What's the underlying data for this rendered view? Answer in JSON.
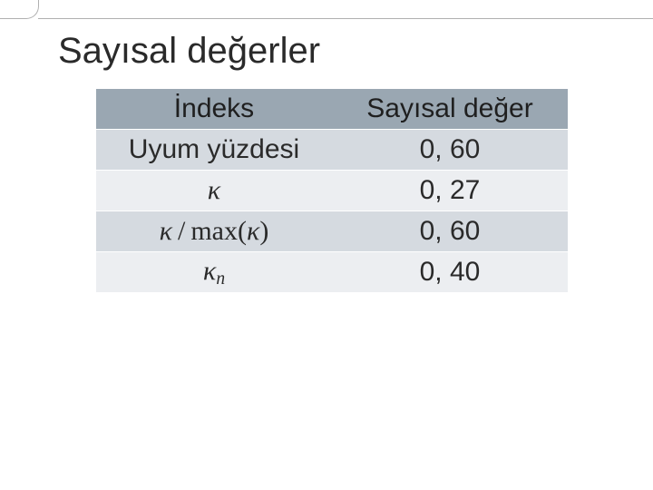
{
  "slide": {
    "title": "Sayısal değerler",
    "table": {
      "headers": {
        "left": "İndeks",
        "right": "Sayısal değer"
      },
      "rows": [
        {
          "index_kind": "text",
          "index_text": "Uyum yüzdesi",
          "value": "0, 60"
        },
        {
          "index_kind": "kappa",
          "index_text": "κ",
          "value": "0, 27"
        },
        {
          "index_kind": "kappa_ratio",
          "index_text": "κ / max(κ)",
          "value": "0, 60"
        },
        {
          "index_kind": "kappa_n",
          "index_text": "κₙ",
          "value": "0, 40"
        }
      ],
      "row_stripe_colors": [
        "#d5dae0",
        "#eceef1"
      ],
      "header_bg": "#9aa7b2",
      "font_size_header": 30,
      "font_size_cell": 30
    },
    "background_color": "#ffffff"
  }
}
